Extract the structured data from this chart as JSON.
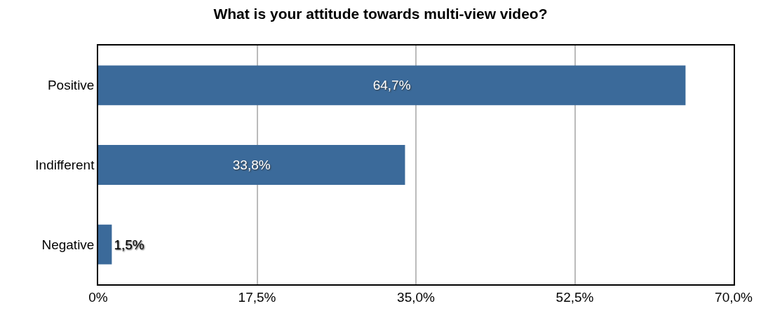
{
  "chart_data": {
    "type": "bar",
    "orientation": "horizontal",
    "title": "What is your attitude towards multi-view video?",
    "categories": [
      "Positive",
      "Indifferent",
      "Negative"
    ],
    "values": [
      64.7,
      33.8,
      1.5
    ],
    "value_labels": [
      "64,7%",
      "33,8%",
      "1,5%"
    ],
    "color": "#3b6a9a",
    "xlim": [
      0,
      70
    ],
    "xticks": [
      {
        "value": 0,
        "label": "0%"
      },
      {
        "value": 17.5,
        "label": "17,5%"
      },
      {
        "value": 35,
        "label": "35,0%"
      },
      {
        "value": 52.5,
        "label": "52,5%"
      },
      {
        "value": 70,
        "label": "70,0%"
      }
    ],
    "grid": "x"
  }
}
